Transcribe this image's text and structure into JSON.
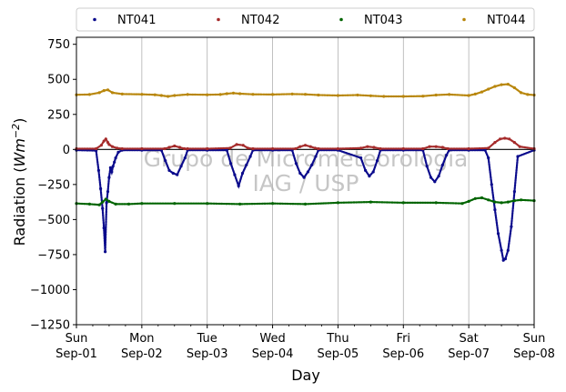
{
  "chart_data": {
    "type": "scatter",
    "xlabel": "Day",
    "ylabel_prefix": "Radiation (",
    "ylabel_unit": "Wm",
    "ylabel_exp": "−2",
    "ylabel_suffix": ")",
    "watermark": [
      "Grupo de Micrometeorologia",
      "IAG / USP"
    ],
    "ylim": [
      -1250,
      800
    ],
    "xlim": [
      0,
      7
    ],
    "grid": "vertical-major",
    "legend_position": "top (outside, above plot)",
    "y_ticks": [
      {
        "value": 750,
        "label": "750"
      },
      {
        "value": 500,
        "label": "500"
      },
      {
        "value": 250,
        "label": "250"
      },
      {
        "value": 0,
        "label": "0"
      },
      {
        "value": -250,
        "label": "−250"
      },
      {
        "value": -500,
        "label": "−500"
      },
      {
        "value": -750,
        "label": "−750"
      },
      {
        "value": -1000,
        "label": "−1000"
      },
      {
        "value": -1250,
        "label": "−1250"
      }
    ],
    "x_ticks": [
      {
        "value": 0,
        "day": "Sun",
        "date": "Sep-01"
      },
      {
        "value": 1,
        "day": "Mon",
        "date": "Sep-02"
      },
      {
        "value": 2,
        "day": "Tue",
        "date": "Sep-03"
      },
      {
        "value": 3,
        "day": "Wed",
        "date": "Sep-04"
      },
      {
        "value": 4,
        "day": "Thu",
        "date": "Sep-05"
      },
      {
        "value": 5,
        "day": "Fri",
        "date": "Sep-06"
      },
      {
        "value": 6,
        "day": "Sat",
        "date": "Sep-07"
      },
      {
        "value": 7,
        "day": "Sun",
        "date": "Sep-08"
      }
    ],
    "series": [
      {
        "name": "NT041",
        "color": "#0a0a8c",
        "x": [
          0,
          0.3,
          0.34,
          0.37,
          0.4,
          0.42,
          0.44,
          0.46,
          0.48,
          0.5,
          0.52,
          0.54,
          0.56,
          0.58,
          0.6,
          0.64,
          0.7,
          1.0,
          1.3,
          1.36,
          1.42,
          1.48,
          1.54,
          1.6,
          1.66,
          1.7,
          2.0,
          2.3,
          2.36,
          2.42,
          2.48,
          2.54,
          2.6,
          2.66,
          2.7,
          3.0,
          3.3,
          3.36,
          3.42,
          3.48,
          3.54,
          3.6,
          3.66,
          3.7,
          4.0,
          4.35,
          4.42,
          4.48,
          4.54,
          4.6,
          4.65,
          5.0,
          5.3,
          5.36,
          5.42,
          5.48,
          5.54,
          5.6,
          5.66,
          5.7,
          6.0,
          6.25,
          6.3,
          6.35,
          6.4,
          6.45,
          6.5,
          6.53,
          6.56,
          6.6,
          6.65,
          6.7,
          6.75,
          7.0
        ],
        "y": [
          -5,
          -8,
          -150,
          -280,
          -420,
          -560,
          -730,
          -380,
          -300,
          -200,
          -130,
          -160,
          -120,
          -90,
          -60,
          -20,
          -5,
          -5,
          -5,
          -80,
          -150,
          -170,
          -180,
          -120,
          -60,
          -5,
          -5,
          -5,
          -100,
          -180,
          -260,
          -170,
          -110,
          -50,
          -5,
          -5,
          -5,
          -100,
          -170,
          -200,
          -160,
          -110,
          -50,
          -5,
          -5,
          -60,
          -150,
          -190,
          -160,
          -80,
          -5,
          -5,
          -5,
          -120,
          -200,
          -230,
          -190,
          -110,
          -40,
          -5,
          -5,
          -5,
          -60,
          -250,
          -430,
          -600,
          -720,
          -790,
          -780,
          -720,
          -550,
          -300,
          -50,
          -5
        ]
      },
      {
        "name": "NT042",
        "color": "#a52a2a",
        "x": [
          0,
          0.3,
          0.38,
          0.42,
          0.45,
          0.48,
          0.5,
          0.55,
          0.62,
          0.7,
          1.0,
          1.35,
          1.42,
          1.5,
          1.58,
          1.65,
          1.7,
          2.0,
          2.35,
          2.45,
          2.55,
          2.62,
          2.7,
          3.0,
          3.35,
          3.42,
          3.5,
          3.58,
          3.65,
          3.7,
          4.0,
          4.35,
          4.45,
          4.55,
          4.65,
          5.0,
          5.3,
          5.4,
          5.5,
          5.6,
          5.68,
          6.0,
          6.3,
          6.4,
          6.48,
          6.55,
          6.62,
          6.7,
          6.78,
          7.0
        ],
        "y": [
          5,
          5,
          30,
          60,
          75,
          50,
          35,
          20,
          10,
          5,
          5,
          5,
          15,
          25,
          15,
          5,
          5,
          5,
          10,
          35,
          30,
          10,
          5,
          5,
          5,
          20,
          30,
          20,
          10,
          5,
          5,
          10,
          20,
          15,
          5,
          5,
          5,
          20,
          20,
          15,
          5,
          5,
          10,
          50,
          75,
          80,
          75,
          50,
          20,
          5
        ]
      },
      {
        "name": "NT043",
        "color": "#006400",
        "x": [
          0,
          0.2,
          0.35,
          0.4,
          0.45,
          0.5,
          0.6,
          0.8,
          1.0,
          1.5,
          2.0,
          2.5,
          3.0,
          3.5,
          4.0,
          4.5,
          5.0,
          5.5,
          5.9,
          6.0,
          6.1,
          6.2,
          6.3,
          6.4,
          6.5,
          6.6,
          6.7,
          6.8,
          7.0
        ],
        "y": [
          -385,
          -390,
          -395,
          -375,
          -355,
          -370,
          -390,
          -390,
          -385,
          -385,
          -385,
          -390,
          -385,
          -390,
          -380,
          -375,
          -380,
          -380,
          -385,
          -370,
          -350,
          -345,
          -360,
          -375,
          -380,
          -375,
          -365,
          -360,
          -365
        ]
      },
      {
        "name": "NT044",
        "color": "#b8860b",
        "x": [
          0,
          0.2,
          0.35,
          0.42,
          0.48,
          0.55,
          0.7,
          1.0,
          1.2,
          1.3,
          1.4,
          1.5,
          1.7,
          2.0,
          2.2,
          2.3,
          2.4,
          2.5,
          2.7,
          3.0,
          3.3,
          3.5,
          3.7,
          4.0,
          4.3,
          4.5,
          4.7,
          5.0,
          5.3,
          5.5,
          5.7,
          6.0,
          6.1,
          6.2,
          6.3,
          6.4,
          6.5,
          6.6,
          6.7,
          6.8,
          6.9,
          7.0
        ],
        "y": [
          390,
          392,
          405,
          420,
          425,
          405,
          395,
          393,
          390,
          385,
          378,
          385,
          392,
          390,
          392,
          398,
          402,
          398,
          393,
          392,
          395,
          393,
          388,
          385,
          388,
          383,
          378,
          378,
          380,
          388,
          392,
          385,
          395,
          410,
          430,
          450,
          462,
          465,
          440,
          405,
          392,
          388
        ]
      }
    ]
  }
}
